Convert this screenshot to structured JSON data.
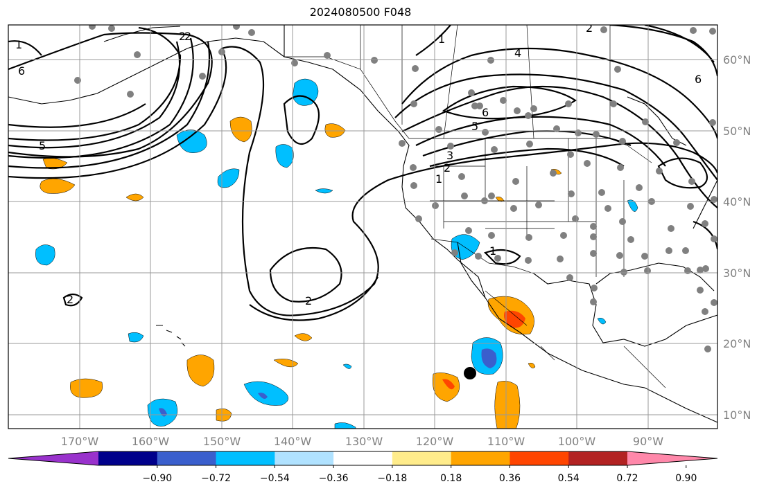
{
  "title": "2024080500 F048",
  "lon_ticks": [
    "170°W",
    "160°W",
    "150°W",
    "140°W",
    "130°W",
    "120°W",
    "110°W",
    "100°W",
    "90°W"
  ],
  "lat_ticks": [
    "60°N",
    "50°N",
    "40°N",
    "30°N",
    "20°N",
    "10°N"
  ],
  "colorbar": {
    "ticks": [
      "−0.90",
      "−0.72",
      "−0.54",
      "−0.36",
      "−0.18",
      "0.18",
      "0.36",
      "0.54",
      "0.72",
      "0.90"
    ],
    "colors": [
      "#9932cc",
      "#00008b",
      "#3a5fcd",
      "#00bfff",
      "#b0e2ff",
      "#ffffff",
      "#ffec8b",
      "#ffa500",
      "#ff4500",
      "#b22222",
      "#ff88aa"
    ]
  },
  "contour_labels": [
    "6",
    "5",
    "2",
    "2",
    "2",
    "1",
    "4",
    "6",
    "5",
    "3",
    "2",
    "1",
    "6",
    "2",
    "1",
    "1",
    "2"
  ],
  "colors": {
    "grid": "#999999",
    "station": "#808080",
    "center_marker": "#000000"
  }
}
